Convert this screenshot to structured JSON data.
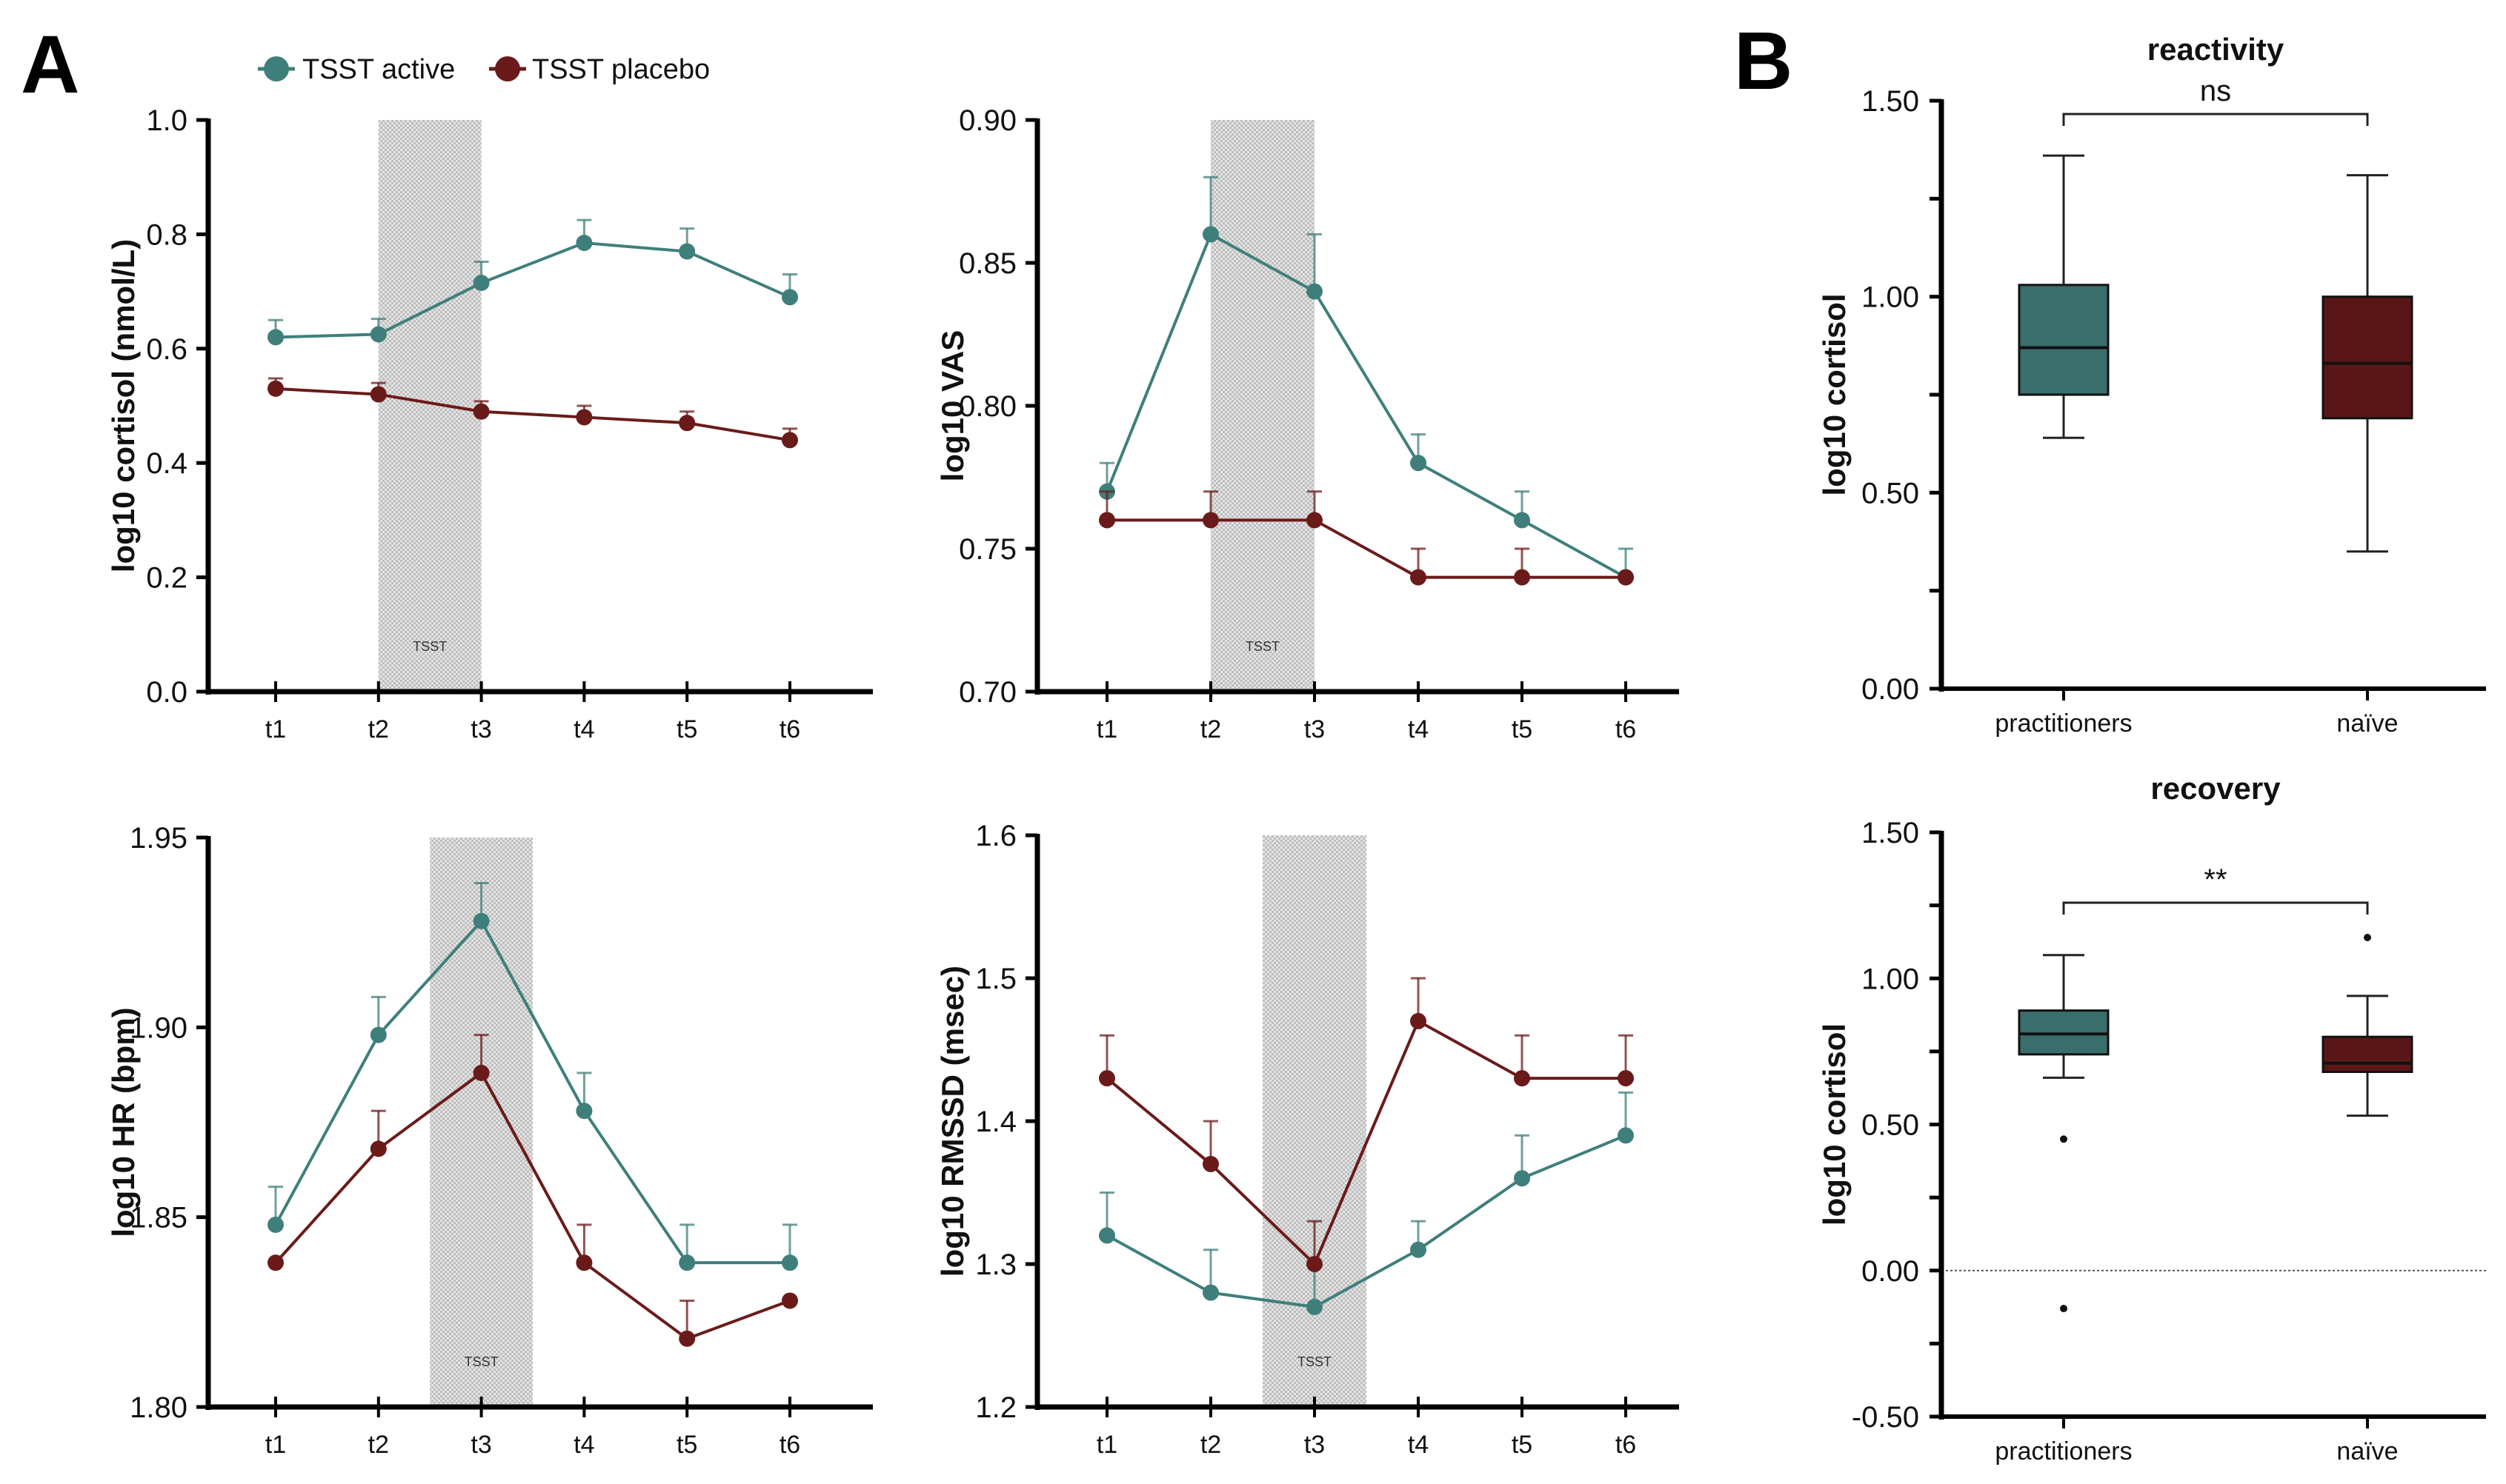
{
  "figure": {
    "panel_a_label": "A",
    "panel_b_label": "B",
    "legend": [
      {
        "name": "TSST active",
        "color": "#3f7f7b"
      },
      {
        "name": "TSST placebo",
        "color": "#6b1a1a"
      }
    ],
    "shade_label": "TSST",
    "shade_color": "#c9c9c9"
  },
  "chart_data": [
    {
      "id": "cortisol",
      "type": "line",
      "title": "",
      "xlabel": "",
      "ylabel": "log10 cortisol (nmol/L)",
      "categories": [
        "t1",
        "t2",
        "t3",
        "t4",
        "t5",
        "t6"
      ],
      "ylim": [
        0.0,
        1.0
      ],
      "yticks": [
        0.0,
        0.2,
        0.4,
        0.6,
        0.8,
        1.0
      ],
      "ytick_labels": [
        "0.0",
        "0.2",
        "0.4",
        "0.6",
        "0.8",
        "1.0"
      ],
      "shaded_region": {
        "from": 2,
        "to": 3,
        "label": "TSST"
      },
      "series": [
        {
          "name": "TSST active",
          "color": "#3f7f7b",
          "values": [
            0.62,
            0.625,
            0.715,
            0.785,
            0.77,
            0.69
          ],
          "error_upper": [
            0.65,
            0.652,
            0.752,
            0.825,
            0.81,
            0.73
          ]
        },
        {
          "name": "TSST placebo",
          "color": "#6b1a1a",
          "values": [
            0.53,
            0.52,
            0.49,
            0.48,
            0.47,
            0.44
          ],
          "error_upper": [
            0.548,
            0.54,
            0.508,
            0.5,
            0.49,
            0.46
          ]
        }
      ]
    },
    {
      "id": "vas",
      "type": "line",
      "title": "",
      "xlabel": "",
      "ylabel": "log10 VAS",
      "categories": [
        "t1",
        "t2",
        "t3",
        "t4",
        "t5",
        "t6"
      ],
      "ylim": [
        0.7,
        0.9
      ],
      "yticks": [
        0.7,
        0.75,
        0.8,
        0.85,
        0.9
      ],
      "ytick_labels": [
        "0.70",
        "0.75",
        "0.80",
        "0.85",
        "0.90"
      ],
      "shaded_region": {
        "from": 2,
        "to": 3,
        "label": "TSST"
      },
      "series": [
        {
          "name": "TSST active",
          "color": "#3f7f7b",
          "values": [
            0.77,
            0.86,
            0.84,
            0.78,
            0.76,
            0.74
          ],
          "error_upper": [
            0.78,
            0.88,
            0.86,
            0.79,
            0.77,
            0.75
          ]
        },
        {
          "name": "TSST placebo",
          "color": "#6b1a1a",
          "values": [
            0.76,
            0.76,
            0.76,
            0.74,
            0.74,
            0.74
          ],
          "error_upper": [
            0.77,
            0.77,
            0.77,
            0.75,
            0.75,
            0.74
          ]
        }
      ]
    },
    {
      "id": "hr",
      "type": "line",
      "title": "",
      "xlabel": "",
      "ylabel": "log10 HR (bpm)",
      "categories": [
        "t1",
        "t2",
        "t3",
        "t4",
        "t5",
        "t6"
      ],
      "ylim": [
        1.8,
        1.95
      ],
      "yticks": [
        1.8,
        1.85,
        1.9,
        1.95
      ],
      "ytick_labels": [
        "1.80",
        "1.85",
        "1.90",
        "1.95"
      ],
      "shaded_region": {
        "from": 2.5,
        "to": 3.5,
        "label": "TSST"
      },
      "series": [
        {
          "name": "TSST active",
          "color": "#3f7f7b",
          "values": [
            1.848,
            1.898,
            1.928,
            1.878,
            1.838,
            1.838
          ],
          "error_upper": [
            1.858,
            1.908,
            1.938,
            1.888,
            1.848,
            1.848
          ]
        },
        {
          "name": "TSST placebo",
          "color": "#6b1a1a",
          "values": [
            1.838,
            1.868,
            1.888,
            1.838,
            1.818,
            1.828
          ],
          "error_upper": [
            1.838,
            1.878,
            1.898,
            1.848,
            1.828,
            1.828
          ]
        }
      ]
    },
    {
      "id": "rmssd",
      "type": "line",
      "title": "",
      "xlabel": "",
      "ylabel": "log10 RMSSD (msec)",
      "categories": [
        "t1",
        "t2",
        "t3",
        "t4",
        "t5",
        "t6"
      ],
      "ylim": [
        1.2,
        1.6
      ],
      "yticks": [
        1.2,
        1.3,
        1.4,
        1.5,
        1.6
      ],
      "ytick_labels": [
        "1.2",
        "1.3",
        "1.4",
        "1.5",
        "1.6"
      ],
      "shaded_region": {
        "from": 2.5,
        "to": 3.5,
        "label": "TSST"
      },
      "series": [
        {
          "name": "TSST active",
          "color": "#3f7f7b",
          "values": [
            1.32,
            1.28,
            1.27,
            1.31,
            1.36,
            1.39
          ],
          "error_upper": [
            1.35,
            1.31,
            1.3,
            1.33,
            1.39,
            1.42
          ]
        },
        {
          "name": "TSST placebo",
          "color": "#6b1a1a",
          "values": [
            1.43,
            1.37,
            1.3,
            1.47,
            1.43,
            1.43
          ],
          "error_upper": [
            1.46,
            1.4,
            1.33,
            1.5,
            1.46,
            1.46
          ]
        }
      ]
    },
    {
      "id": "reactivity",
      "type": "box",
      "title": "reactivity",
      "xlabel": "",
      "ylabel": "log10 cortisol",
      "categories": [
        "practitioners",
        "naïve"
      ],
      "ylim": [
        0.0,
        1.5
      ],
      "yticks": [
        0.0,
        0.25,
        0.5,
        0.75,
        1.0,
        1.25,
        1.5
      ],
      "ytick_labels": [
        "0.00",
        "",
        "0.50",
        "",
        "1.00",
        "",
        "1.50"
      ],
      "significance": {
        "label": "ns",
        "between": [
          0,
          1
        ]
      },
      "zero_line": false,
      "boxes": [
        {
          "name": "practitioners",
          "color": "#3a6e6c",
          "whisker_low": 0.64,
          "q1": 0.75,
          "median": 0.87,
          "q3": 1.03,
          "whisker_high": 1.36,
          "outliers": []
        },
        {
          "name": "naïve",
          "color": "#5a1616",
          "whisker_low": 0.35,
          "q1": 0.69,
          "median": 0.83,
          "q3": 1.0,
          "whisker_high": 1.31,
          "outliers": []
        }
      ]
    },
    {
      "id": "recovery",
      "type": "box",
      "title": "recovery",
      "xlabel": "",
      "ylabel": "log10 cortisol",
      "categories": [
        "practitioners",
        "naïve"
      ],
      "ylim": [
        -0.5,
        1.5
      ],
      "yticks": [
        -0.5,
        -0.25,
        0.0,
        0.25,
        0.5,
        0.75,
        1.0,
        1.25,
        1.5
      ],
      "ytick_labels": [
        "-0.50",
        "",
        "0.00",
        "",
        "0.50",
        "",
        "1.00",
        "",
        "1.50"
      ],
      "significance": {
        "label": "**",
        "between": [
          0,
          1
        ]
      },
      "zero_line": true,
      "boxes": [
        {
          "name": "practitioners",
          "color": "#3a6e6c",
          "whisker_low": 0.66,
          "q1": 0.74,
          "median": 0.81,
          "q3": 0.89,
          "whisker_high": 1.08,
          "outliers": [
            0.45,
            -0.13
          ]
        },
        {
          "name": "naïve",
          "color": "#5a1616",
          "whisker_low": 0.53,
          "q1": 0.68,
          "median": 0.71,
          "q3": 0.8,
          "whisker_high": 0.94,
          "outliers": [
            1.14
          ]
        }
      ]
    }
  ]
}
